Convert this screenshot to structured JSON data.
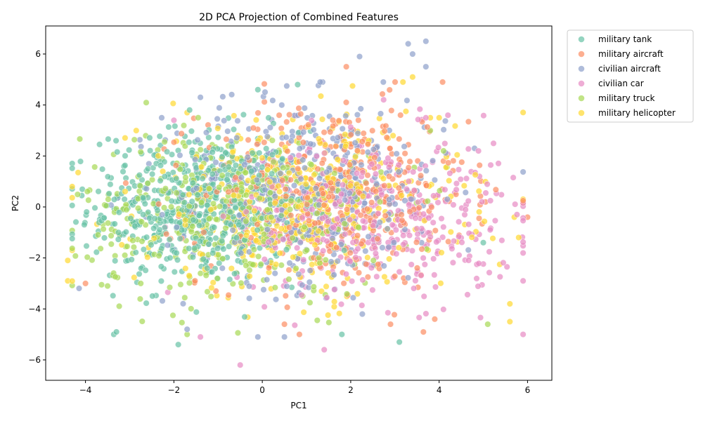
{
  "chart_data": {
    "type": "scatter",
    "title": "2D PCA Projection of Combined Features",
    "xlabel": "PC1",
    "ylabel": "PC2",
    "xlim": [
      -4.9,
      6.55
    ],
    "ylim": [
      -6.8,
      7.1
    ],
    "xticks": [
      -4,
      -2,
      0,
      2,
      4,
      6
    ],
    "yticks": [
      -6,
      -4,
      -2,
      0,
      2,
      4,
      6
    ],
    "xtick_labels": [
      "−4",
      "−2",
      "0",
      "2",
      "4",
      "6"
    ],
    "ytick_labels": [
      "−6",
      "−4",
      "−2",
      "0",
      "2",
      "4",
      "6"
    ],
    "grid": false,
    "legend_placement": "outside-upper-right",
    "marker_alpha": 0.7,
    "series": [
      {
        "name": "military tank",
        "color": "#66c2a5",
        "count": 560,
        "center": [
          -1.5,
          0.0
        ],
        "spread": [
          1.2,
          1.5
        ],
        "highlights": [
          [
            -1.9,
            -5.4
          ],
          [
            -3.3,
            -4.9
          ],
          [
            3.1,
            -5.3
          ],
          [
            1.8,
            -5.0
          ],
          [
            0.8,
            4.8
          ],
          [
            -0.1,
            4.6
          ],
          [
            5.0,
            -1.4
          ]
        ]
      },
      {
        "name": "military aircraft",
        "color": "#fc8d62",
        "count": 420,
        "center": [
          1.6,
          0.5
        ],
        "spread": [
          1.5,
          1.8
        ],
        "highlights": [
          [
            -4.0,
            -3.0
          ],
          [
            6.0,
            -0.4
          ],
          [
            1.9,
            5.5
          ],
          [
            0.5,
            -4.6
          ],
          [
            3.9,
            -4.4
          ],
          [
            2.9,
            -4.6
          ]
        ]
      },
      {
        "name": "civilian aircraft",
        "color": "#8da0cb",
        "count": 460,
        "center": [
          1.0,
          0.6
        ],
        "spread": [
          1.6,
          1.8
        ],
        "highlights": [
          [
            3.7,
            6.5
          ],
          [
            3.3,
            6.4
          ],
          [
            3.4,
            6.0
          ],
          [
            2.2,
            5.9
          ],
          [
            3.7,
            5.5
          ],
          [
            -1.4,
            4.3
          ],
          [
            -0.1,
            -5.1
          ],
          [
            0.5,
            -5.1
          ],
          [
            -1.7,
            -4.8
          ],
          [
            4.8,
            2.3
          ]
        ]
      },
      {
        "name": "civilian car",
        "color": "#e78ac3",
        "count": 420,
        "center": [
          2.6,
          -0.4
        ],
        "spread": [
          1.6,
          1.6
        ],
        "highlights": [
          [
            -0.5,
            -6.2
          ],
          [
            1.4,
            -5.6
          ],
          [
            -1.4,
            -5.1
          ],
          [
            5.9,
            -2.9
          ],
          [
            4.2,
            3.6
          ],
          [
            3.7,
            3.5
          ],
          [
            -2.0,
            3.4
          ]
        ]
      },
      {
        "name": "military truck",
        "color": "#a6d854",
        "count": 420,
        "center": [
          -0.7,
          -0.3
        ],
        "spread": [
          1.7,
          1.6
        ],
        "highlights": [
          [
            -1.7,
            -5.0
          ],
          [
            5.1,
            -4.6
          ],
          [
            3.8,
            3.0
          ],
          [
            4.1,
            2.2
          ],
          [
            -3.5,
            -3.1
          ]
        ]
      },
      {
        "name": "military helicopter",
        "color": "#ffd92f",
        "count": 420,
        "center": [
          0.8,
          0.0
        ],
        "spread": [
          1.8,
          1.7
        ],
        "highlights": [
          [
            -4.4,
            -2.9
          ],
          [
            -4.3,
            -1.7
          ],
          [
            -4.4,
            -2.1
          ],
          [
            5.7,
            -0.4
          ],
          [
            5.8,
            -1.2
          ],
          [
            5.6,
            -4.5
          ],
          [
            5.6,
            -3.8
          ],
          [
            -1.7,
            3.7
          ],
          [
            3.4,
            5.1
          ],
          [
            3.8,
            3.5
          ],
          [
            4.0,
            3.5
          ]
        ]
      }
    ]
  }
}
